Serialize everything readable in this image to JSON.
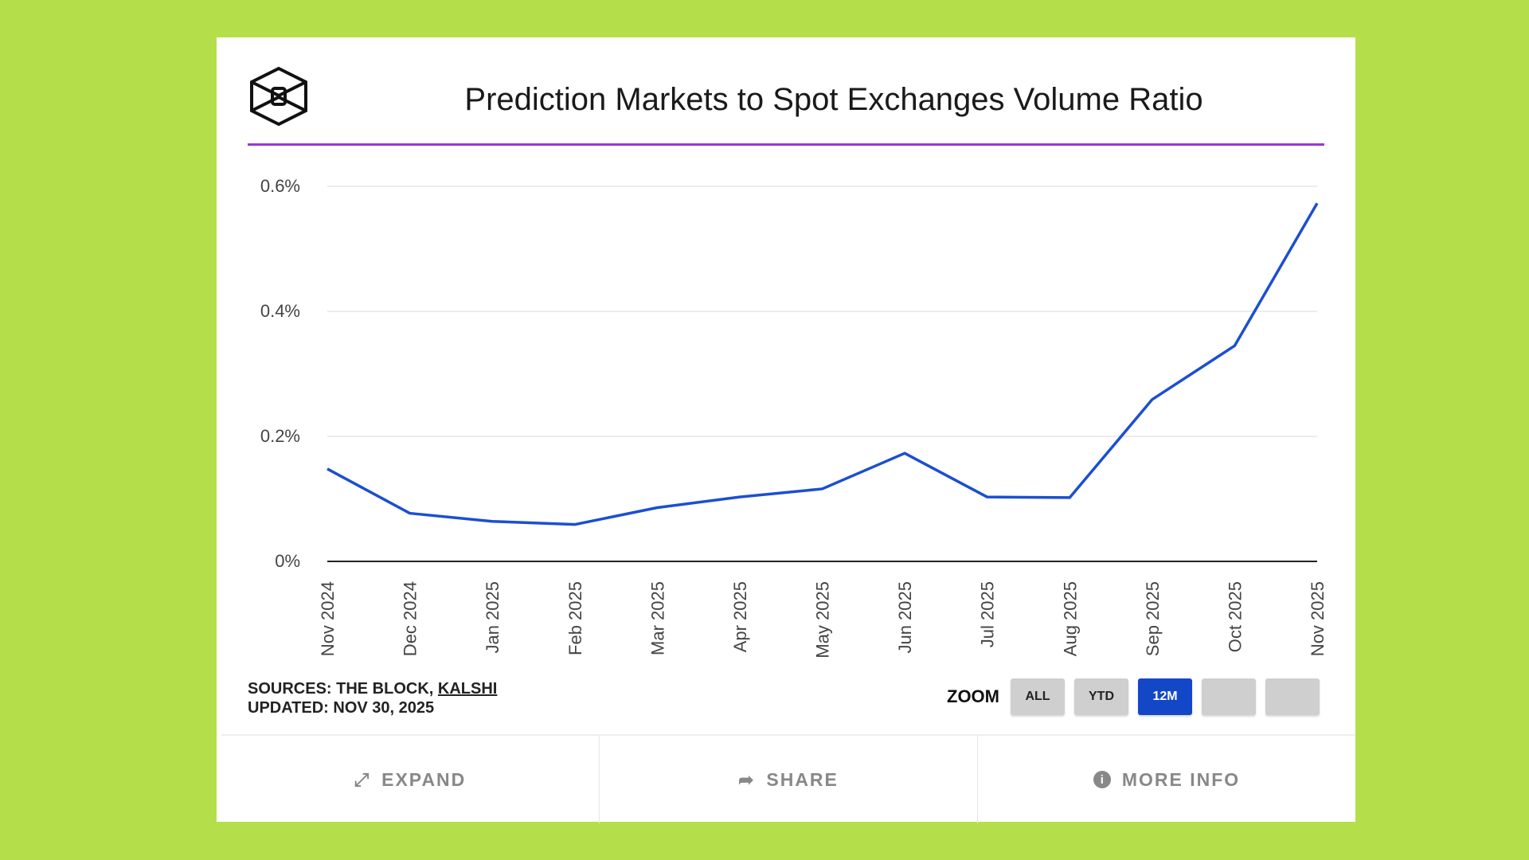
{
  "header": {
    "title": "Prediction Markets to Spot Exchanges Volume Ratio",
    "logo": "the-block-cube-logo"
  },
  "chart_data": {
    "type": "line",
    "title": "Prediction Markets to Spot Exchanges Volume Ratio",
    "categories": [
      "Nov 2024",
      "Dec 2024",
      "Jan 2025",
      "Feb 2025",
      "Mar 2025",
      "Apr 2025",
      "May 2025",
      "Jun 2025",
      "Jul 2025",
      "Aug 2025",
      "Sep 2025",
      "Oct 2025",
      "Nov 2025"
    ],
    "values": [
      0.148,
      0.077,
      0.064,
      0.059,
      0.086,
      0.103,
      0.116,
      0.173,
      0.103,
      0.102,
      0.259,
      0.345,
      0.573
    ],
    "yticks": [
      "0%",
      "0.2%",
      "0.4%",
      "0.6%"
    ],
    "ylim": [
      0,
      0.6
    ],
    "grid": true,
    "line_color": "#1b4fd1"
  },
  "footer": {
    "sources_prefix": "SOURCES: THE BLOCK, ",
    "sources_link": "KALSHI",
    "updated": "UPDATED: NOV 30, 2025"
  },
  "zoom": {
    "label": "ZOOM",
    "buttons": [
      "ALL",
      "YTD",
      "12M",
      "",
      ""
    ],
    "active": "12M",
    "active_color": "#1447c8"
  },
  "actions": {
    "expand": "EXPAND",
    "share": "SHARE",
    "more_info": "MORE INFO"
  }
}
